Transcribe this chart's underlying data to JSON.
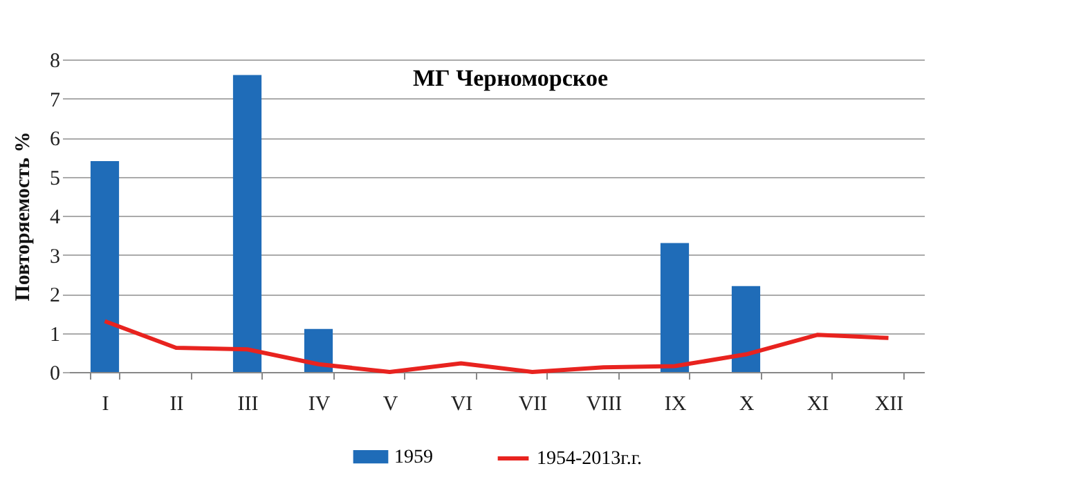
{
  "chart_data": {
    "type": "bar",
    "title": "МГ Черноморское",
    "ylabel": "Повторяемость %",
    "categories": [
      "I",
      "II",
      "III",
      "IV",
      "V",
      "VI",
      "VII",
      "VIII",
      "IX",
      "X",
      "XI",
      "XII"
    ],
    "series": [
      {
        "name": "1959",
        "color": "#1f6cb8",
        "values": [
          5.4,
          0,
          7.6,
          1.1,
          0,
          0,
          0,
          0,
          3.3,
          2.2,
          0,
          0
        ]
      },
      {
        "name": "1954-2013г.г.",
        "type": "line",
        "color": "#e8231f",
        "values": [
          1.3,
          0.62,
          0.58,
          0.2,
          0.0,
          0.22,
          0.0,
          0.12,
          0.15,
          0.45,
          0.95,
          0.87
        ]
      }
    ],
    "ylim": [
      0,
      8
    ],
    "yticks": [
      0,
      1,
      2,
      3,
      4,
      5,
      6,
      7,
      8
    ],
    "grid": "y",
    "legend": "bottom",
    "marker": "none",
    "line_style": "solid"
  }
}
